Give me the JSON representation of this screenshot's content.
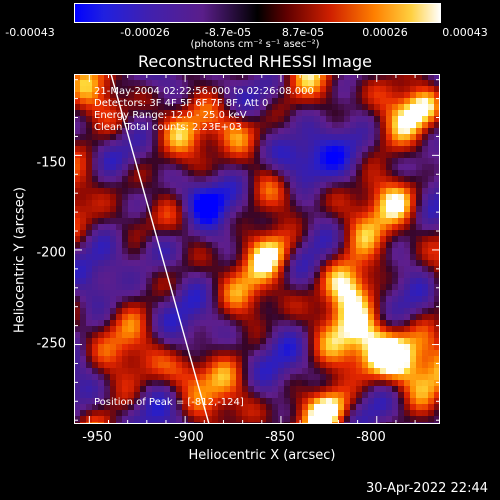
{
  "chart_data": {
    "type": "heatmap",
    "title": "Reconstructed RHESSI Image",
    "xlabel": "Heliocentric X (arcsec)",
    "ylabel": "Heliocentric Y (arcsec)",
    "x_ticks": [
      "-950",
      "-900",
      "-850",
      "-800"
    ],
    "y_ticks": [
      "-150",
      "-200",
      "-250"
    ],
    "xlim": [
      -958,
      -767
    ],
    "ylim": [
      -292,
      -107
    ],
    "colorbar": {
      "ticks": [
        "-0.00043",
        "-0.00026",
        "-8.7e-05",
        "8.7e-05",
        "0.00026",
        "0.00043"
      ],
      "units": "(photons cm⁻² s⁻¹ asec⁻²)",
      "range": [
        -0.00043,
        0.00043
      ]
    },
    "info_lines": [
      "21-May-2004 02:22:56.000 to 02:26:08.000",
      "Detectors: 3F 4F 5F 6F 7F 8F, Att 0",
      "Energy Range: 12.0 - 25.0 keV",
      "Clean     Total counts: 2.23E+03"
    ],
    "peak_label": "Position of Peak = [-812,-124]",
    "peak": [
      -812,
      -124
    ],
    "grid": false,
    "colors": {
      "limb_line": "#ffffff",
      "frame": "#ffffff"
    }
  },
  "timestamp": "30-Apr-2022 22:44"
}
